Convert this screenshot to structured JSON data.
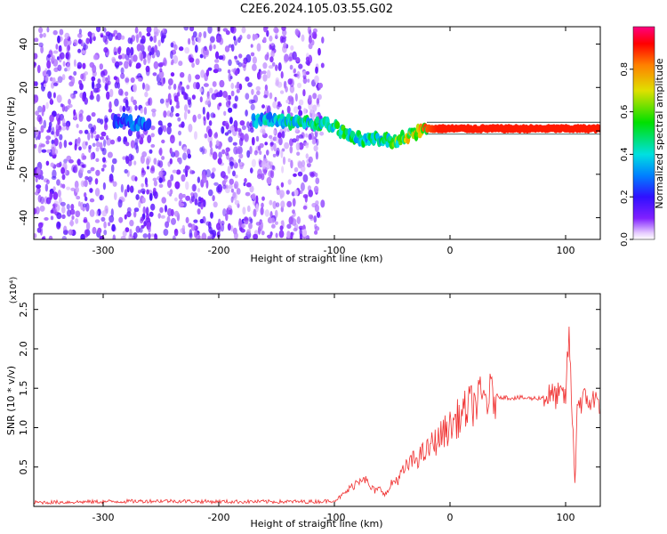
{
  "figure_title": "C2E6.2024.105.03.55.G02",
  "chart_data": [
    {
      "type": "heatmap",
      "title": "C2E6.2024.105.03.55.G02",
      "xlabel": "Height of straight line (km)",
      "ylabel": "Frequency (Hz)",
      "xlim": [
        -360,
        130
      ],
      "ylim": [
        -50,
        48
      ],
      "x_ticks": [
        -300,
        -200,
        -100,
        0,
        100
      ],
      "y_ticks": [
        -40,
        -20,
        0,
        20,
        40
      ],
      "colorbar": {
        "label": "Normalized spectral amplitude",
        "range": [
          0.0,
          1.0
        ],
        "ticks": [
          0.0,
          0.2,
          0.4,
          0.6,
          0.8
        ],
        "colormap": "rainbow (violet → blue → cyan → green → yellow → red → magenta)"
      },
      "noise_region": {
        "x_range": [
          -360,
          -110
        ],
        "y_range": [
          -50,
          48
        ]
      },
      "signal_track": [
        {
          "x": -290,
          "freq": 5,
          "amp": 0.25
        },
        {
          "x": -280,
          "freq": 4,
          "amp": 0.3
        },
        {
          "x": -270,
          "freq": 3,
          "amp": 0.35
        },
        {
          "x": -260,
          "freq": 4,
          "amp": 0.3
        },
        {
          "x": -170,
          "freq": 5,
          "amp": 0.4
        },
        {
          "x": -150,
          "freq": 5,
          "amp": 0.45
        },
        {
          "x": -130,
          "freq": 4,
          "amp": 0.5
        },
        {
          "x": -110,
          "freq": 3,
          "amp": 0.5
        },
        {
          "x": -100,
          "freq": 2,
          "amp": 0.55
        },
        {
          "x": -90,
          "freq": -1,
          "amp": 0.55
        },
        {
          "x": -80,
          "freq": -3,
          "amp": 0.5
        },
        {
          "x": -70,
          "freq": -4,
          "amp": 0.5
        },
        {
          "x": -60,
          "freq": -4,
          "amp": 0.5
        },
        {
          "x": -50,
          "freq": -5,
          "amp": 0.6
        },
        {
          "x": -40,
          "freq": -3,
          "amp": 0.7
        },
        {
          "x": -30,
          "freq": -1,
          "amp": 0.8
        },
        {
          "x": -20,
          "freq": 1,
          "amp": 0.85
        },
        {
          "x": -10,
          "freq": 1,
          "amp": 0.9
        },
        {
          "x": 0,
          "freq": 1,
          "amp": 0.9
        },
        {
          "x": 20,
          "freq": 1,
          "amp": 0.9
        },
        {
          "x": 40,
          "freq": 1,
          "amp": 0.9
        },
        {
          "x": 60,
          "freq": 1,
          "amp": 0.9
        },
        {
          "x": 80,
          "freq": 1,
          "amp": 0.9
        },
        {
          "x": 100,
          "freq": 1,
          "amp": 0.9
        },
        {
          "x": 130,
          "freq": 1,
          "amp": 0.9
        }
      ]
    },
    {
      "type": "line",
      "xlabel": "Height of straight line (km)",
      "ylabel": "SNR (10 * v/v)",
      "y_multiplier": "(x10⁴)",
      "xlim": [
        -360,
        130
      ],
      "ylim": [
        0,
        2.7
      ],
      "x_ticks": [
        -300,
        -200,
        -100,
        0,
        100
      ],
      "y_ticks": [
        0.5,
        1.0,
        1.5,
        2.0,
        2.5
      ],
      "y_tick_labels": [
        "0.5",
        "1.0",
        "1.5",
        "2.0",
        "2.5"
      ],
      "series_color": "#f03030",
      "series": [
        {
          "x": [
            -360,
            -300,
            -250,
            -200,
            -150,
            -120,
            -100,
            -95,
            -90,
            -85,
            -80,
            -75,
            -70,
            -65,
            -60,
            -55,
            -50,
            -45,
            -40,
            -35,
            -30,
            -25,
            -20,
            -15,
            -10,
            -5,
            0,
            5,
            10,
            15,
            20,
            30,
            40,
            50,
            60,
            70,
            80,
            85,
            90,
            95,
            100,
            103,
            105,
            108,
            110,
            115,
            120,
            130
          ],
          "y": [
            0.05,
            0.06,
            0.07,
            0.06,
            0.06,
            0.06,
            0.07,
            0.12,
            0.18,
            0.25,
            0.32,
            0.4,
            0.25,
            0.2,
            0.22,
            0.15,
            0.3,
            0.35,
            0.45,
            0.55,
            0.6,
            0.65,
            0.7,
            0.8,
            0.85,
            0.95,
            1.0,
            1.1,
            1.15,
            1.25,
            1.3,
            1.38,
            1.4,
            1.38,
            1.38,
            1.37,
            1.38,
            1.4,
            1.4,
            1.4,
            1.4,
            2.2,
            1.4,
            0.3,
            1.3,
            1.35,
            1.35,
            1.33
          ]
        }
      ]
    }
  ]
}
